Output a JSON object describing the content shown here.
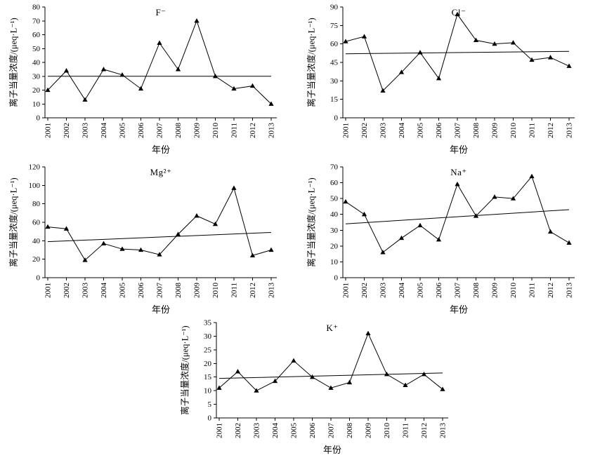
{
  "figure": {
    "background": "#ffffff",
    "line_color": "#000000",
    "marker": "filled-triangle"
  },
  "chart_data": [
    {
      "type": "line",
      "title": "F⁻",
      "ylabel": "离子当量浓度/(μeq·L⁻¹)",
      "xlabel": "年份",
      "categories": [
        "2001",
        "2002",
        "2003",
        "2004",
        "2005",
        "2006",
        "2007",
        "2008",
        "2009",
        "2010",
        "2011",
        "2012",
        "2013"
      ],
      "values": [
        20,
        34,
        13,
        35,
        31,
        21,
        54,
        35,
        70,
        30,
        21,
        23,
        10
      ],
      "trendline": {
        "start": 30,
        "end": 30
      },
      "ylim": [
        0,
        80
      ],
      "ytick_step": 10,
      "grid": false,
      "legend": "none"
    },
    {
      "type": "line",
      "title": "Cl⁻",
      "ylabel": "离子当量浓度/(μeq·L⁻¹)",
      "xlabel": "年份",
      "categories": [
        "2001",
        "2002",
        "2003",
        "2004",
        "2005",
        "2006",
        "2007",
        "2008",
        "2009",
        "2010",
        "2011",
        "2012",
        "2013"
      ],
      "values": [
        62,
        66,
        22,
        37,
        53,
        32,
        84,
        63,
        60,
        61,
        47,
        49,
        42
      ],
      "trendline": {
        "start": 52,
        "end": 54
      },
      "ylim": [
        0,
        90
      ],
      "ytick_step": 15,
      "grid": false,
      "legend": "none"
    },
    {
      "type": "line",
      "title": "Mg²⁺",
      "ylabel": "离子当量浓度/(μeq·L⁻¹)",
      "xlabel": "年份",
      "categories": [
        "2001",
        "2002",
        "2003",
        "2004",
        "2005",
        "2006",
        "2007",
        "2008",
        "2009",
        "2010",
        "2011",
        "2012",
        "2013"
      ],
      "values": [
        55,
        53,
        19,
        37,
        31,
        30,
        25,
        47,
        67,
        58,
        97,
        24,
        30
      ],
      "trendline": {
        "start": 39,
        "end": 49
      },
      "ylim": [
        0,
        120
      ],
      "ytick_step": 20,
      "grid": false,
      "legend": "none"
    },
    {
      "type": "line",
      "title": "Na⁺",
      "ylabel": "离子当量浓度/(μeq·L⁻¹)",
      "xlabel": "年份",
      "categories": [
        "2001",
        "2002",
        "2003",
        "2004",
        "2005",
        "2006",
        "2007",
        "2008",
        "2009",
        "2010",
        "2011",
        "2012",
        "2013"
      ],
      "values": [
        48,
        40,
        16,
        25,
        33,
        24,
        59,
        39,
        51,
        50,
        64,
        29,
        22
      ],
      "trendline": {
        "start": 34,
        "end": 43
      },
      "ylim": [
        0,
        70
      ],
      "ytick_step": 10,
      "grid": false,
      "legend": "none"
    },
    {
      "type": "line",
      "title": "K⁺",
      "ylabel": "离子当量浓度/(μeq·L⁻¹)",
      "xlabel": "年份",
      "categories": [
        "2001",
        "2002",
        "2003",
        "2004",
        "2005",
        "2006",
        "2007",
        "2008",
        "2009",
        "2010",
        "2011",
        "2012",
        "2013"
      ],
      "values": [
        11,
        17,
        10,
        13.5,
        21,
        15,
        11,
        13,
        31,
        16,
        12,
        16,
        10.5
      ],
      "trendline": {
        "start": 14.5,
        "end": 16.5
      },
      "ylim": [
        0,
        35
      ],
      "ytick_step": 5,
      "grid": false,
      "legend": "none"
    }
  ]
}
